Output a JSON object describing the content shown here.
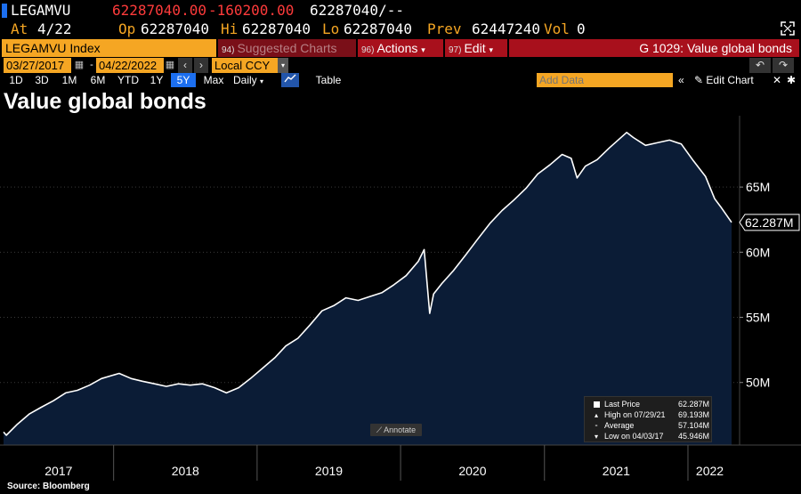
{
  "header": {
    "ticker": "LEGAMVU",
    "quote": "62287040.00",
    "change": "-160200.00",
    "last_bid_ask": "62287040/--",
    "at_label": "At",
    "at_value": "4/22",
    "op_label": "Op",
    "op_value": "62287040",
    "hi_label": "Hi",
    "hi_value": "62287040",
    "lo_label": "Lo",
    "lo_value": "62287040",
    "prev_label": "Prev",
    "prev_value": "62447240",
    "vol_label": "Vol",
    "vol_value": "0"
  },
  "toolbar": {
    "security": "LEGAMVU Index",
    "suggested_num": "94)",
    "suggested_label": "Suggested Charts",
    "actions_num": "96)",
    "actions_label": "Actions",
    "edit_num": "97)",
    "edit_label": "Edit",
    "chart_name": "G 1029: Value global bonds"
  },
  "dates": {
    "start": "03/27/2017",
    "end": "04/22/2022",
    "currency": "Local CCY"
  },
  "ranges": [
    "1D",
    "3D",
    "1M",
    "6M",
    "YTD",
    "1Y",
    "5Y",
    "Max"
  ],
  "active_range": "5Y",
  "frequency": "Daily",
  "table_label": "Table",
  "add_data_placeholder": "Add Data",
  "edit_chart_label": "Edit Chart",
  "chart_title": "Value global bonds",
  "source_label": "Source: Bloomberg",
  "annotate_label": "Annotate",
  "legend": {
    "last_price_label": "Last Price",
    "last_price_value": "62.287M",
    "high_label": "High on 07/29/21",
    "high_value": "69.193M",
    "average_label": "Average",
    "average_value": "57.104M",
    "low_label": "Low on 04/03/17",
    "low_value": "45.946M"
  },
  "colors": {
    "area_fill": "#0a1a33",
    "line": "#ffffff",
    "accent_orange": "#f5a623",
    "accent_red": "#a8101c",
    "active_blue": "#1c6ff0"
  },
  "icons": [
    "expand-icon",
    "calendar-icon",
    "prev-arrow-icon",
    "next-arrow-icon",
    "undo-icon",
    "redo-icon",
    "line-chart-icon",
    "collapse-icon",
    "pencil-icon",
    "gear-icon",
    "annotate-pencil-icon"
  ],
  "chart_data": {
    "type": "area",
    "title": "Value global bonds",
    "xlabel": "",
    "ylabel": "",
    "x_tick_labels": [
      "2017",
      "2018",
      "2019",
      "2020",
      "2021",
      "2022"
    ],
    "y_tick_labels": [
      "50M",
      "55M",
      "60M",
      "65M"
    ],
    "y_ticks": [
      50,
      55,
      60,
      65
    ],
    "ylim": [
      45.2,
      70.2
    ],
    "xlim": [
      "2017-03-27",
      "2022-04-22"
    ],
    "last_value_label": "62.287M",
    "last_value": 62.287,
    "grid": true,
    "legend_position": "bottom-right",
    "series": [
      {
        "name": "Last Price",
        "points": [
          [
            "2017-03-27",
            46.2
          ],
          [
            "2017-04-03",
            45.95
          ],
          [
            "2017-05-01",
            46.8
          ],
          [
            "2017-06-01",
            47.6
          ],
          [
            "2017-07-01",
            48.1
          ],
          [
            "2017-08-01",
            48.6
          ],
          [
            "2017-09-01",
            49.2
          ],
          [
            "2017-10-01",
            49.4
          ],
          [
            "2017-11-01",
            49.8
          ],
          [
            "2017-12-01",
            50.3
          ],
          [
            "2018-01-15",
            50.7
          ],
          [
            "2018-02-15",
            50.3
          ],
          [
            "2018-03-15",
            50.1
          ],
          [
            "2018-04-15",
            49.9
          ],
          [
            "2018-05-15",
            49.7
          ],
          [
            "2018-06-15",
            49.9
          ],
          [
            "2018-07-15",
            49.8
          ],
          [
            "2018-08-15",
            49.9
          ],
          [
            "2018-09-15",
            49.6
          ],
          [
            "2018-10-15",
            49.2
          ],
          [
            "2018-11-15",
            49.6
          ],
          [
            "2018-12-15",
            50.3
          ],
          [
            "2019-01-15",
            51.1
          ],
          [
            "2019-02-15",
            51.9
          ],
          [
            "2019-03-15",
            52.8
          ],
          [
            "2019-04-15",
            53.4
          ],
          [
            "2019-05-15",
            54.4
          ],
          [
            "2019-06-15",
            55.5
          ],
          [
            "2019-07-15",
            55.9
          ],
          [
            "2019-08-15",
            56.5
          ],
          [
            "2019-09-15",
            56.3
          ],
          [
            "2019-10-15",
            56.6
          ],
          [
            "2019-11-15",
            56.9
          ],
          [
            "2019-12-15",
            57.5
          ],
          [
            "2020-01-15",
            58.2
          ],
          [
            "2020-02-15",
            59.3
          ],
          [
            "2020-03-01",
            60.2
          ],
          [
            "2020-03-15",
            55.3
          ],
          [
            "2020-03-25",
            56.8
          ],
          [
            "2020-04-15",
            57.6
          ],
          [
            "2020-05-15",
            58.6
          ],
          [
            "2020-06-15",
            59.8
          ],
          [
            "2020-07-15",
            61.0
          ],
          [
            "2020-08-15",
            62.2
          ],
          [
            "2020-09-15",
            63.2
          ],
          [
            "2020-10-15",
            64.0
          ],
          [
            "2020-11-15",
            64.9
          ],
          [
            "2020-12-15",
            66.0
          ],
          [
            "2021-01-15",
            66.7
          ],
          [
            "2021-02-15",
            67.5
          ],
          [
            "2021-03-10",
            67.2
          ],
          [
            "2021-03-25",
            65.7
          ],
          [
            "2021-04-15",
            66.6
          ],
          [
            "2021-05-15",
            67.1
          ],
          [
            "2021-06-15",
            68.0
          ],
          [
            "2021-07-29",
            69.19
          ],
          [
            "2021-08-15",
            68.8
          ],
          [
            "2021-09-15",
            68.2
          ],
          [
            "2021-10-15",
            68.4
          ],
          [
            "2021-11-15",
            68.6
          ],
          [
            "2021-12-15",
            68.3
          ],
          [
            "2022-01-15",
            67.0
          ],
          [
            "2022-02-15",
            65.8
          ],
          [
            "2022-03-10",
            64.1
          ],
          [
            "2022-03-25",
            63.5
          ],
          [
            "2022-04-22",
            62.29
          ]
        ]
      }
    ]
  }
}
